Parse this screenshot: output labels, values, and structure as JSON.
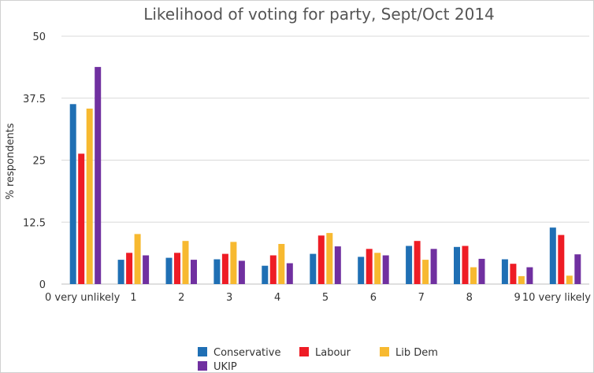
{
  "chart_data": {
    "type": "bar",
    "title": "Likelihood of voting for party, Sept/Oct 2014",
    "xlabel": "",
    "ylabel": "% respondents",
    "ylim": [
      0,
      50
    ],
    "yticks": [
      "0",
      "12.5",
      "25",
      "37.5",
      "50"
    ],
    "grid": true,
    "legend_position": "bottom",
    "categories": [
      "0 very unlikely",
      "1",
      "2",
      "3",
      "4",
      "5",
      "6",
      "7",
      "8",
      "9",
      "10 very likely"
    ],
    "series": [
      {
        "name": "Conservative",
        "color": "#1f6fb4",
        "values": [
          36.3,
          4.9,
          5.3,
          5.0,
          3.7,
          6.1,
          5.5,
          7.7,
          7.5,
          5.0,
          11.4
        ]
      },
      {
        "name": "Labour",
        "color": "#ee1c25",
        "values": [
          26.3,
          6.3,
          6.3,
          6.1,
          5.8,
          9.8,
          7.1,
          8.7,
          7.7,
          4.1,
          9.9
        ]
      },
      {
        "name": "Lib Dem",
        "color": "#f7b930",
        "values": [
          35.4,
          10.1,
          8.7,
          8.5,
          8.1,
          10.3,
          6.3,
          4.9,
          3.4,
          1.6,
          1.7
        ]
      },
      {
        "name": "UKIP",
        "color": "#7030a0",
        "values": [
          43.8,
          5.8,
          4.9,
          4.7,
          4.2,
          7.6,
          5.8,
          7.1,
          5.1,
          3.4,
          6.0
        ]
      }
    ]
  }
}
